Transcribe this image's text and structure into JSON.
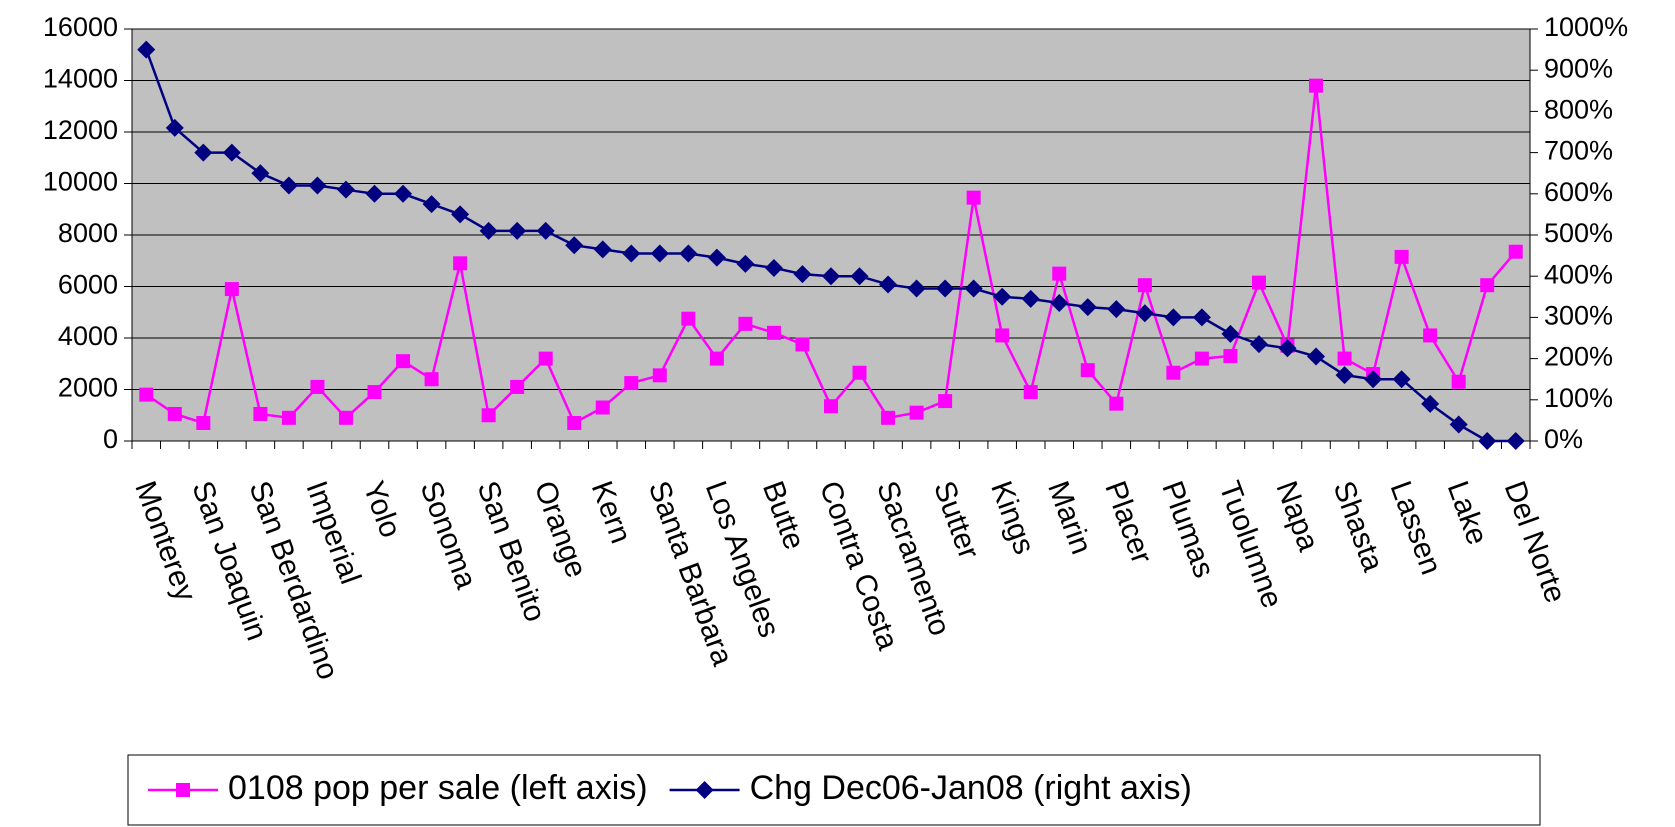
{
  "chart_data": {
    "type": "line",
    "categories": [
      "Monterey",
      null,
      "San Joaquin",
      null,
      "San Berdardino",
      null,
      "Imperial",
      null,
      "Yolo",
      null,
      "Sonoma",
      null,
      "San Benito",
      null,
      "Orange",
      null,
      "Kern",
      null,
      "Santa Barbara",
      null,
      "Los Angeles",
      null,
      "Butte",
      null,
      "Contra Costa",
      null,
      "Sacramento",
      null,
      "Sutter",
      null,
      "Kings",
      null,
      "Marin",
      null,
      "Placer",
      null,
      "Plumas",
      null,
      "Tuolumne",
      null,
      "Napa",
      null,
      "Shasta",
      null,
      "Lassen",
      null,
      "Lake",
      null,
      "Del Norte"
    ],
    "series": [
      {
        "name": "0108 pop per sale (left axis)",
        "color": "#ff00ff",
        "marker": "square",
        "values": [
          1800,
          1050,
          700,
          5900,
          1050,
          900,
          2100,
          900,
          1900,
          3100,
          2400,
          6900,
          1000,
          2100,
          3200,
          700,
          1300,
          2250,
          2550,
          4750,
          3200,
          4550,
          4200,
          3750,
          1350,
          2650,
          900,
          1100,
          1550,
          9450,
          4100,
          1900,
          6500,
          2750,
          1450,
          6050,
          2650,
          3200,
          3300,
          6150,
          3700,
          13800,
          3200,
          2600,
          7150,
          4100,
          2300,
          6050,
          7350
        ]
      },
      {
        "name": "Chg Dec06-Jan08 (right axis)",
        "color": "#000080",
        "marker": "diamond",
        "axis": "y2",
        "values": [
          950,
          760,
          700,
          700,
          650,
          620,
          620,
          610,
          600,
          600,
          575,
          550,
          510,
          510,
          510,
          475,
          465,
          455,
          455,
          455,
          445,
          430,
          420,
          405,
          400,
          400,
          380,
          370,
          370,
          370,
          350,
          345,
          335,
          325,
          320,
          310,
          300,
          300,
          260,
          235,
          225,
          205,
          160,
          150,
          150,
          90,
          40,
          0,
          0
        ]
      }
    ],
    "ylim": [
      0,
      16000
    ],
    "yticks": [
      0,
      2000,
      4000,
      6000,
      8000,
      10000,
      12000,
      14000,
      16000
    ],
    "y2lim": [
      0,
      1000
    ],
    "y2ticks": [
      {
        "value": 0,
        "label": "0%"
      },
      {
        "value": 100,
        "label": "100%"
      },
      {
        "value": 200,
        "label": "200%"
      },
      {
        "value": 300,
        "label": "300%"
      },
      {
        "value": 400,
        "label": "400%"
      },
      {
        "value": 500,
        "label": "500%"
      },
      {
        "value": 600,
        "label": "600%"
      },
      {
        "value": 700,
        "label": "700%"
      },
      {
        "value": 800,
        "label": "800%"
      },
      {
        "value": 900,
        "label": "900%"
      },
      {
        "value": 1000,
        "label": "1000%"
      }
    ],
    "grid": true,
    "plot_background": "#c0c0c0",
    "legend": "bottom"
  }
}
